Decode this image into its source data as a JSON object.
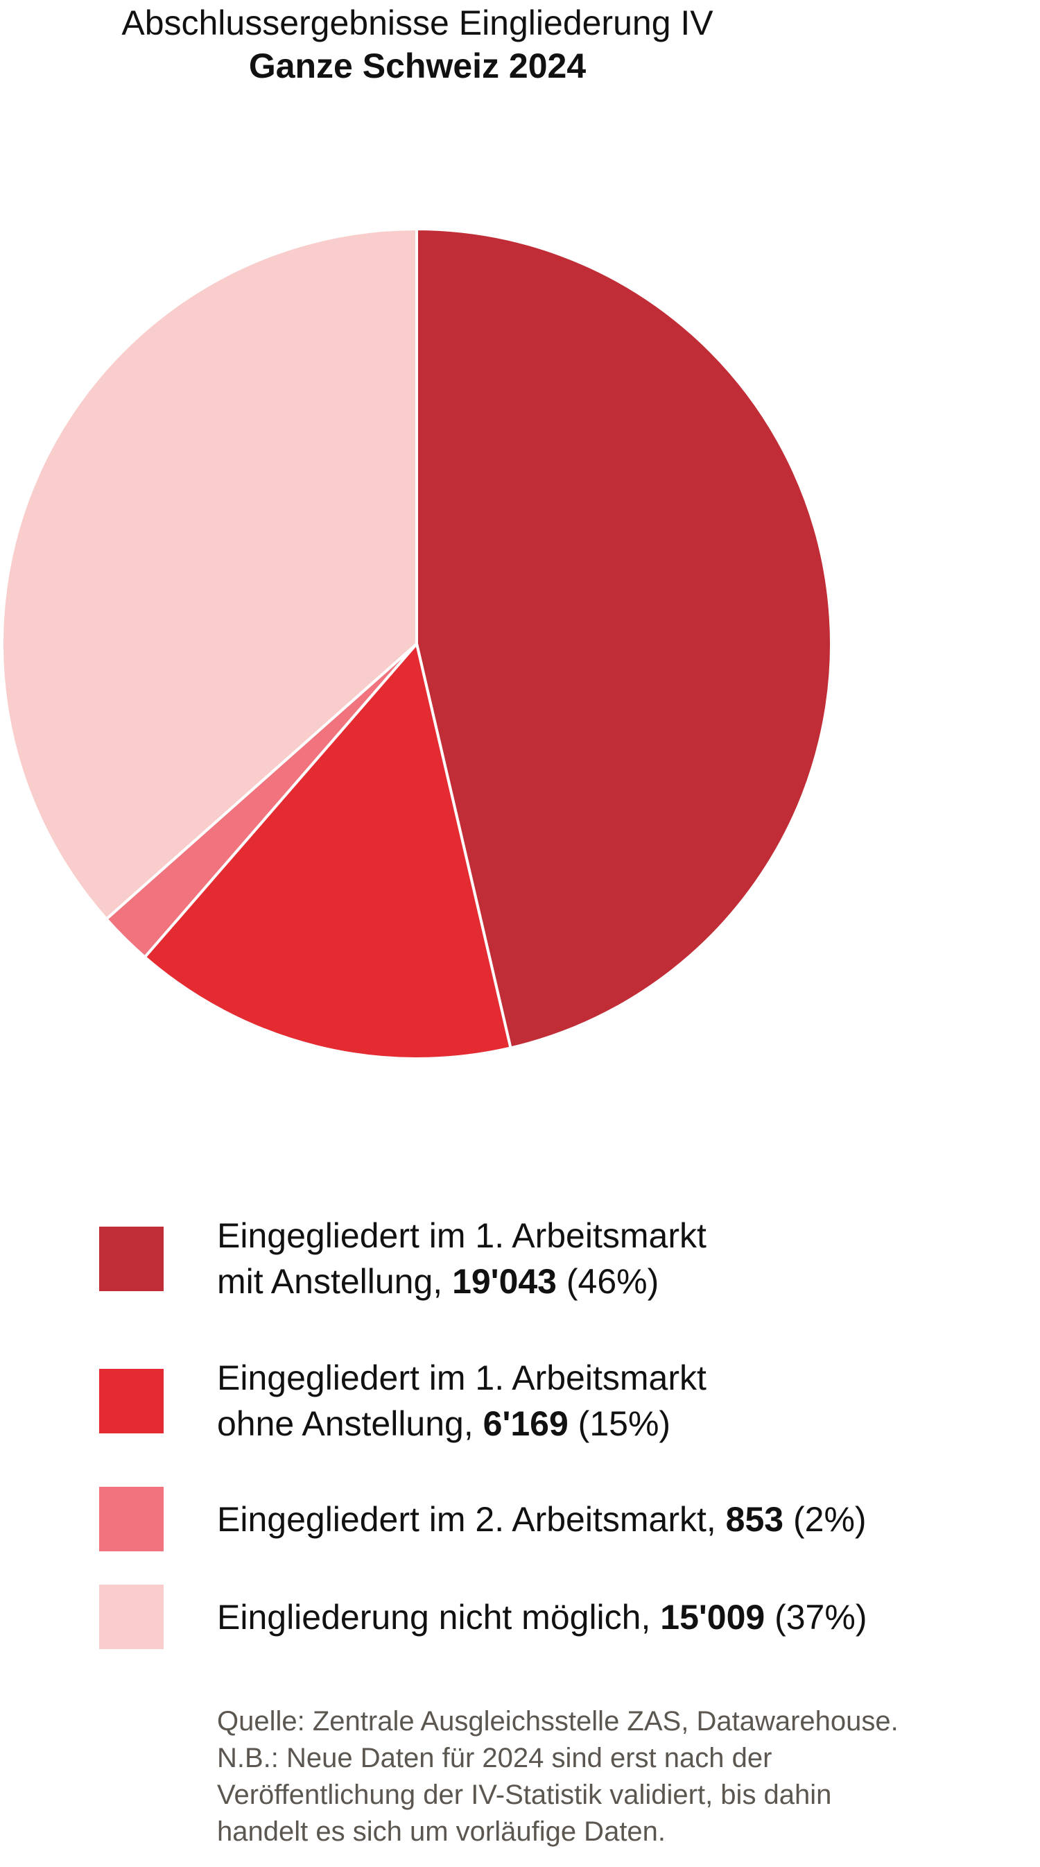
{
  "chart_data": {
    "type": "pie",
    "title": "Abschlussergebnisse Eingliederung IV",
    "subtitle": "Ganze Schweiz 2024",
    "start": "top",
    "direction": "clockwise",
    "slices": [
      {
        "label_line1": "Eingegliedert im 1. Arbeitsmarkt",
        "label_line2": "mit Anstellung, ",
        "value": 19043,
        "value_text": "19'043",
        "percent_text": " (46%)",
        "color": "#c12d36"
      },
      {
        "label_line1": "Eingegliedert im 1. Arbeitsmarkt",
        "label_line2": "ohne Anstellung, ",
        "value": 6169,
        "value_text": "6'169",
        "percent_text": " (15%)",
        "color": "#e52b32"
      },
      {
        "label_line1": "",
        "label_line2": "Eingegliedert im 2. Arbeitsmarkt, ",
        "value": 853,
        "value_text": "853",
        "percent_text": " (2%)",
        "color": "#f0737d"
      },
      {
        "label_line1": "",
        "label_line2": "Eingliederung nicht möglich, ",
        "value": 15009,
        "value_text": "15'009",
        "percent_text": " (37%)",
        "color": "#f9cdcb"
      }
    ],
    "legend_placement": "bottom"
  },
  "source": [
    "Quelle: Zentrale Ausgleichsstelle ZAS, Datawarehouse.",
    "N.B.: Neue Daten für 2024 sind erst nach der",
    "Veröffentlichung der IV-Statistik validiert, bis dahin",
    "handelt es sich um vorläufige Daten."
  ]
}
